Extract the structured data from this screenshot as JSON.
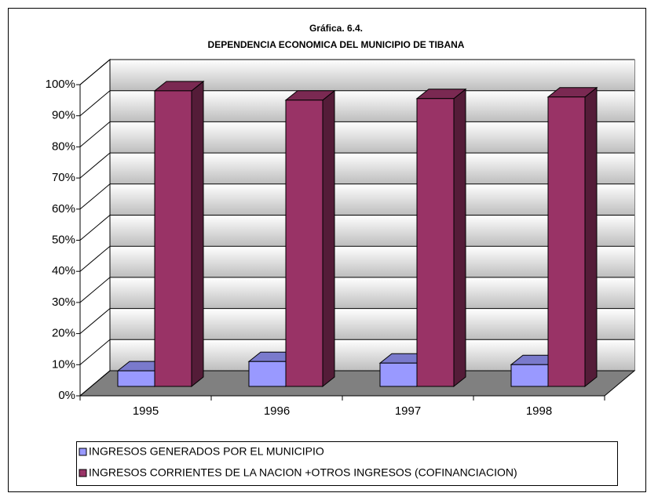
{
  "chart_data": {
    "type": "bar3d",
    "title": "Gráfica. 6.4.",
    "subtitle": "DEPENDENCIA ECONOMICA DEL MUNICIPIO DE TIBANA",
    "categories": [
      "1995",
      "1996",
      "1997",
      "1998"
    ],
    "series": [
      {
        "name": "INGRESOS GENERADOS POR EL MUNICIPIO",
        "color": "#9999ff",
        "values": [
          5,
          8,
          7.5,
          7
        ]
      },
      {
        "name": "INGRESOS CORRIENTES DE LA NACION +OTROS INGRESOS (COFINANCIACION)",
        "color": "#993366",
        "values": [
          95,
          92,
          92.5,
          93
        ]
      }
    ],
    "ylim": [
      0,
      100
    ],
    "yticks": [
      {
        "value": 0,
        "label": "0%"
      },
      {
        "value": 10,
        "label": "10%"
      },
      {
        "value": 20,
        "label": "20%"
      },
      {
        "value": 30,
        "label": "30%"
      },
      {
        "value": 40,
        "label": "40%"
      },
      {
        "value": 50,
        "label": "50%"
      },
      {
        "value": 60,
        "label": "60%"
      },
      {
        "value": 70,
        "label": "70%"
      },
      {
        "value": 80,
        "label": "80%"
      },
      {
        "value": 90,
        "label": "90%"
      },
      {
        "value": 100,
        "label": "100%"
      }
    ],
    "grid": true,
    "legend": "bottom"
  }
}
